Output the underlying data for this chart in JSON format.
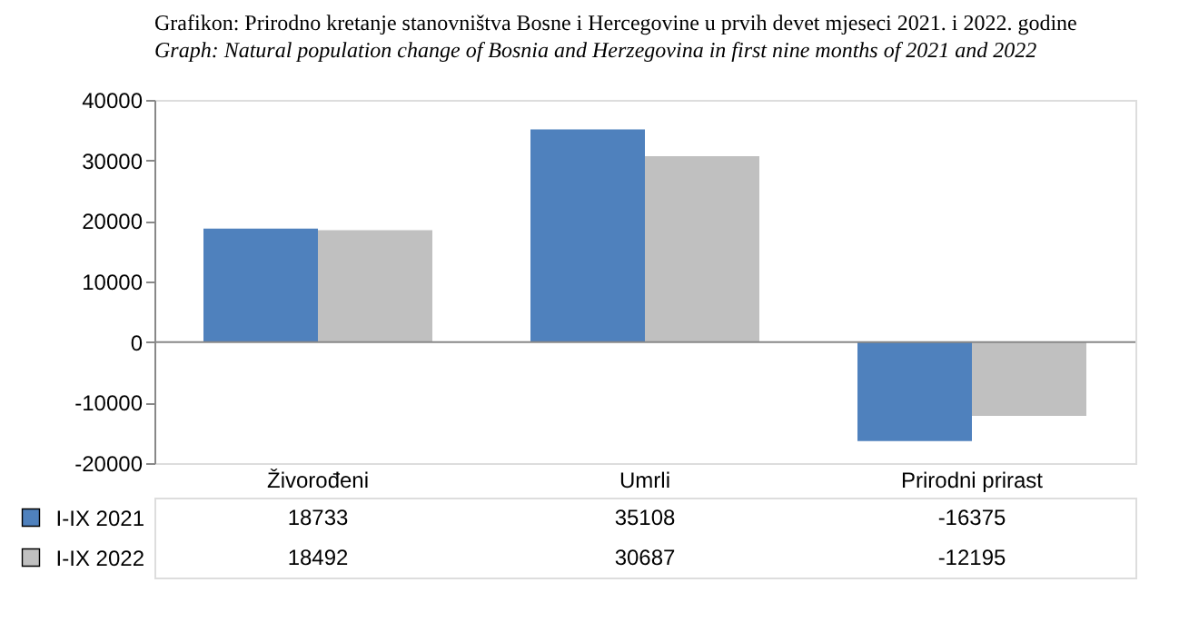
{
  "chart_data": {
    "type": "bar",
    "title": "Grafikon: Prirodno kretanje stanovništva Bosne i Hercegovine u prvih devet mjeseci 2021. i 2022. godine",
    "subtitle": "Graph: Natural population change of Bosnia and Herzegovina in first nine months of 2021 and 2022",
    "categories": [
      "Živorođeni",
      "Umrli",
      "Prirodni prirast"
    ],
    "series": [
      {
        "name": "I-IX 2021",
        "color": "#4f81bd",
        "values": [
          18733,
          35108,
          -16375
        ]
      },
      {
        "name": "I-IX 2022",
        "color": "#c0c0c0",
        "values": [
          18492,
          30687,
          -12195
        ]
      }
    ],
    "ylim": [
      -20000,
      40000
    ],
    "yticks": [
      -20000,
      -10000,
      0,
      10000,
      20000,
      30000,
      40000
    ],
    "legend": "bottom",
    "data_labels": true
  }
}
